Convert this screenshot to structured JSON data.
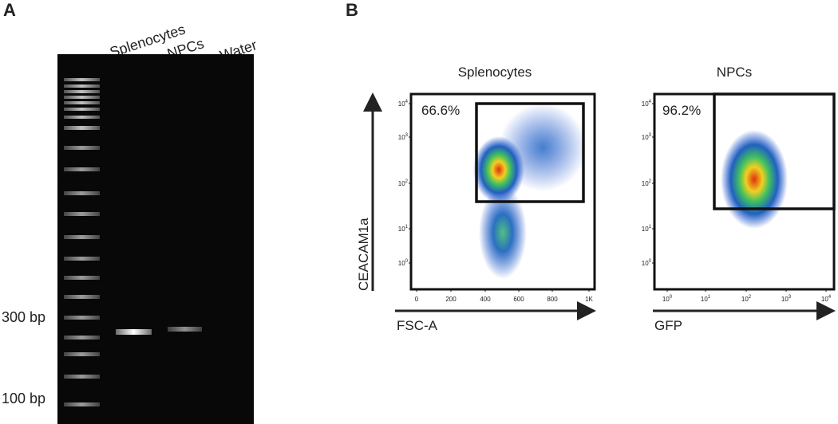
{
  "panel_a": {
    "label": "A",
    "lanes": [
      "Splenocytes",
      "NPCs",
      "Water"
    ],
    "markers": [
      "300 bp",
      "100 bp"
    ]
  },
  "panel_b": {
    "label": "B",
    "y_axis_label": "CEACAM1a",
    "plots": [
      {
        "title": "Splenocytes",
        "gate": "66.6%",
        "x_axis_label": "FSC-A",
        "yticks": [
          {
            "base": "10",
            "exp": "4"
          },
          {
            "base": "10",
            "exp": "3"
          },
          {
            "base": "10",
            "exp": "2"
          },
          {
            "base": "10",
            "exp": "1"
          },
          {
            "base": "10",
            "exp": "0"
          }
        ],
        "xticks": [
          "0",
          "200",
          "400",
          "600",
          "800",
          "1K"
        ]
      },
      {
        "title": "NPCs",
        "gate": "96.2%",
        "x_axis_label": "GFP",
        "yticks": [
          {
            "base": "10",
            "exp": "4"
          },
          {
            "base": "10",
            "exp": "3"
          },
          {
            "base": "10",
            "exp": "2"
          },
          {
            "base": "10",
            "exp": "1"
          },
          {
            "base": "10",
            "exp": "0"
          }
        ],
        "xticks": [
          {
            "base": "10",
            "exp": "0"
          },
          {
            "base": "10",
            "exp": "1"
          },
          {
            "base": "10",
            "exp": "2"
          },
          {
            "base": "10",
            "exp": "3"
          },
          {
            "base": "10",
            "exp": "4"
          }
        ]
      }
    ]
  }
}
